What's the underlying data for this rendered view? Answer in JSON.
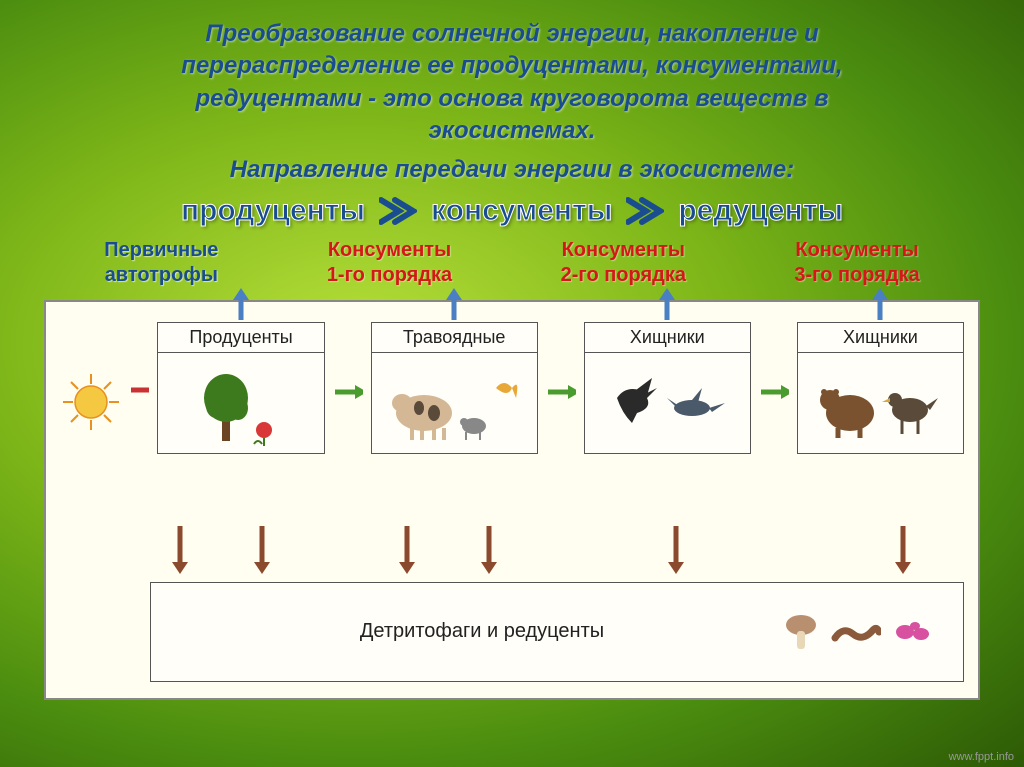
{
  "title": {
    "line1": "Преобразование солнечной энергии, накопление и",
    "line2": "перераспределение ее продуцентами, консументами,",
    "line3": "редуцентами - это основа круговорота веществ в",
    "line4": "экосистемах."
  },
  "subtitle": "Направление передачи энергии в экосистеме:",
  "flow": {
    "items": [
      "продуценты",
      "консументы",
      "редуценты"
    ],
    "arrow_color": "#1a4d8f"
  },
  "labels": [
    {
      "lines": [
        "Первичные",
        "автотрофы"
      ],
      "color_class": "label-primary"
    },
    {
      "lines": [
        "Консументы",
        "1-го порядка"
      ],
      "color_class": "label-red"
    },
    {
      "lines": [
        "Консументы",
        "2-го порядка"
      ],
      "color_class": "label-red"
    },
    {
      "lines": [
        "Консументы",
        "3-го порядка"
      ],
      "color_class": "label-red"
    }
  ],
  "diagram": {
    "background": "#fffef0",
    "box_border": "#555555",
    "trophic_boxes": [
      {
        "title": "Продуценты",
        "icon": "producers"
      },
      {
        "title": "Травоядные",
        "icon": "herbivores"
      },
      {
        "title": "Хищники",
        "icon": "predators1"
      },
      {
        "title": "Хищники",
        "icon": "predators2"
      }
    ],
    "bottom_box": {
      "label": "Детритофаги и редуценты",
      "icons": [
        "mushroom",
        "worm",
        "bacteria"
      ]
    },
    "colors": {
      "arrow_blue": "#4a7fc4",
      "arrow_green": "#4a9c2e",
      "arrow_red": "#c83232",
      "arrow_brown": "#8b4a2e",
      "sun_yellow": "#f5c842",
      "sun_orange": "#e89020",
      "tree_green": "#3d7a1e",
      "tree_trunk": "#6b4423",
      "cow_body": "#d4b896",
      "bird_dark": "#2a2a2a",
      "bear_brown": "#7a5230",
      "mushroom_cap": "#b89070",
      "worm_body": "#8b5a3c",
      "bacteria_pink": "#d850a0"
    }
  },
  "footer": "www.fppt.info"
}
